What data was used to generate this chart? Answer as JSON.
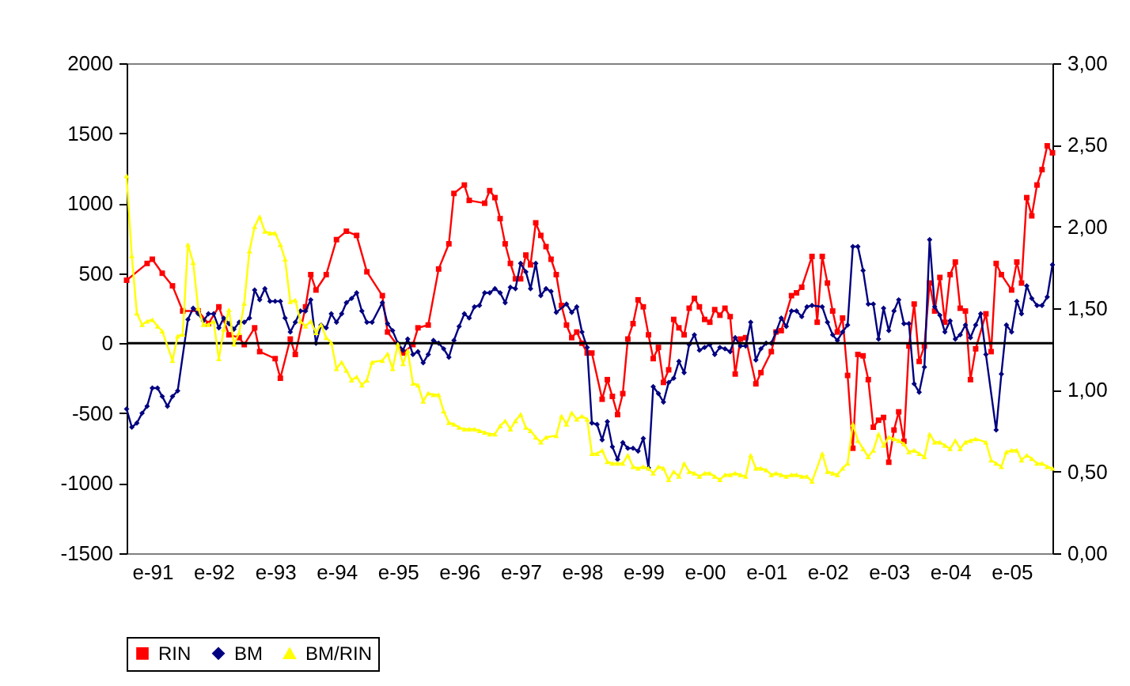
{
  "chart_data": {
    "type": "line",
    "legend": "bottom",
    "line_style": "solid",
    "xlim": [
      "1990-08",
      "2005-09"
    ],
    "xticks": [
      {
        "value": "1991-01",
        "label": "e-91"
      },
      {
        "value": "1992-01",
        "label": "e-92"
      },
      {
        "value": "1993-01",
        "label": "e-93"
      },
      {
        "value": "1994-01",
        "label": "e-94"
      },
      {
        "value": "1995-01",
        "label": "e-95"
      },
      {
        "value": "1996-01",
        "label": "e-96"
      },
      {
        "value": "1997-01",
        "label": "e-97"
      },
      {
        "value": "1998-01",
        "label": "e-98"
      },
      {
        "value": "1999-01",
        "label": "e-99"
      },
      {
        "value": "2000-01",
        "label": "e-00"
      },
      {
        "value": "2001-01",
        "label": "e-01"
      },
      {
        "value": "2002-01",
        "label": "e-02"
      },
      {
        "value": "2003-01",
        "label": "e-03"
      },
      {
        "value": "2004-01",
        "label": "e-04"
      },
      {
        "value": "2005-01",
        "label": "e-05"
      }
    ],
    "ylim": [
      -1500,
      2000
    ],
    "yticks": [
      -1500,
      -1000,
      -500,
      0,
      500,
      1000,
      1500,
      2000
    ],
    "ref_lines": [
      {
        "axis": "y",
        "value": 0,
        "color": "#000000",
        "line_style": "solid"
      }
    ],
    "y2lim": [
      0,
      3
    ],
    "y2ticks": [
      {
        "value": 0,
        "label": "0,00"
      },
      {
        "value": 0.5,
        "label": "0,50"
      },
      {
        "value": 1,
        "label": "1,00"
      },
      {
        "value": 1.5,
        "label": "1,50"
      },
      {
        "value": 2,
        "label": "2,00"
      },
      {
        "value": 2.5,
        "label": "2,50"
      },
      {
        "value": 3,
        "label": "3,00"
      }
    ],
    "series": [
      {
        "name": "RIN",
        "color": "#ff0000",
        "marker": "square",
        "x": [
          "1990-08",
          "1990-12",
          "1991-01",
          "1991-03",
          "1991-05",
          "1991-07",
          "1991-10",
          "1991-12",
          "1992-02",
          "1992-04",
          "1992-06",
          "1992-07",
          "1992-09",
          "1992-10",
          "1993-01",
          "1993-02",
          "1993-04",
          "1993-05",
          "1993-07",
          "1993-08",
          "1993-09",
          "1993-11",
          "1994-01",
          "1994-03",
          "1994-05",
          "1994-07",
          "1994-10",
          "1994-11",
          "1995-02",
          "1995-04",
          "1995-05",
          "1995-07",
          "1995-09",
          "1995-11",
          "1995-12",
          "1996-02",
          "1996-03",
          "1996-06",
          "1996-07",
          "1996-08",
          "1996-09",
          "1996-10",
          "1996-11",
          "1996-12",
          "1997-01",
          "1997-02",
          "1997-03",
          "1997-04",
          "1997-05",
          "1997-06",
          "1997-07",
          "1997-08",
          "1997-09",
          "1997-10",
          "1997-11",
          "1997-12",
          "1998-01",
          "1998-02",
          "1998-03",
          "1998-05",
          "1998-06",
          "1998-07",
          "1998-08",
          "1998-09",
          "1998-10",
          "1998-11",
          "1998-12",
          "1999-01",
          "1999-02",
          "1999-03",
          "1999-04",
          "1999-05",
          "1999-06",
          "1999-07",
          "1999-08",
          "1999-09",
          "1999-10",
          "1999-11",
          "1999-12",
          "2000-01",
          "2000-02",
          "2000-03",
          "2000-04",
          "2000-05",
          "2000-06",
          "2000-07",
          "2000-08",
          "2000-09",
          "2000-11",
          "2000-12",
          "2001-02",
          "2001-03",
          "2001-04",
          "2001-06",
          "2001-07",
          "2001-08",
          "2001-10",
          "2001-11",
          "2001-12",
          "2002-01",
          "2002-02",
          "2002-03",
          "2002-04",
          "2002-05",
          "2002-06",
          "2002-07",
          "2002-08",
          "2002-09",
          "2002-10",
          "2002-11",
          "2002-12",
          "2003-01",
          "2003-02",
          "2003-03",
          "2003-04",
          "2003-05",
          "2003-06",
          "2003-07",
          "2003-08",
          "2003-09",
          "2003-10",
          "2003-11",
          "2003-12",
          "2004-01",
          "2004-02",
          "2004-03",
          "2004-04",
          "2004-05",
          "2004-06",
          "2004-08",
          "2004-09",
          "2004-10",
          "2004-11",
          "2005-01",
          "2005-02",
          "2005-03",
          "2005-04",
          "2005-05",
          "2005-06",
          "2005-07",
          "2005-08",
          "2005-09"
        ],
        "values": [
          450,
          570,
          600,
          500,
          410,
          230,
          230,
          140,
          260,
          60,
          40,
          -10,
          110,
          -60,
          -110,
          -250,
          30,
          -80,
          260,
          490,
          380,
          490,
          740,
          800,
          770,
          510,
          340,
          80,
          -70,
          -10,
          110,
          130,
          530,
          710,
          1070,
          1130,
          1020,
          1000,
          1090,
          1040,
          890,
          710,
          570,
          460,
          460,
          630,
          560,
          860,
          770,
          690,
          600,
          490,
          270,
          130,
          40,
          80,
          0,
          -70,
          -70,
          -400,
          -260,
          -380,
          -510,
          -360,
          30,
          140,
          310,
          260,
          60,
          -110,
          -30,
          -280,
          -190,
          170,
          110,
          60,
          250,
          320,
          260,
          170,
          150,
          240,
          200,
          250,
          190,
          -220,
          30,
          40,
          -290,
          -210,
          -60,
          80,
          90,
          340,
          360,
          400,
          620,
          150,
          620,
          430,
          230,
          80,
          180,
          -230,
          -750,
          -80,
          -90,
          -260,
          -600,
          -550,
          -530,
          -850,
          -620,
          -490,
          -700,
          -20,
          280,
          -130,
          -20,
          430,
          230,
          470,
          150,
          490,
          580,
          250,
          230,
          -260,
          -40,
          210,
          -60,
          570,
          490,
          380,
          580,
          430,
          1040,
          910,
          1130,
          1240,
          1410,
          1360
        ]
      },
      {
        "name": "BM",
        "color": "#000080",
        "marker": "diamond",
        "x": [
          "1990-08",
          "1990-09",
          "1990-10",
          "1990-11",
          "1990-12",
          "1991-01",
          "1991-02",
          "1991-03",
          "1991-04",
          "1991-05",
          "1991-06",
          "1991-08",
          "1991-09",
          "1991-10",
          "1991-11",
          "1991-12",
          "1992-01",
          "1992-02",
          "1992-03",
          "1992-04",
          "1992-05",
          "1992-06",
          "1992-07",
          "1992-08",
          "1992-09",
          "1992-10",
          "1992-11",
          "1992-12",
          "1993-01",
          "1993-02",
          "1993-03",
          "1993-04",
          "1993-05",
          "1993-06",
          "1993-07",
          "1993-08",
          "1993-09",
          "1993-10",
          "1993-11",
          "1993-12",
          "1994-01",
          "1994-02",
          "1994-03",
          "1994-04",
          "1994-05",
          "1994-06",
          "1994-07",
          "1994-08",
          "1994-10",
          "1994-11",
          "1994-12",
          "1995-01",
          "1995-02",
          "1995-03",
          "1995-04",
          "1995-05",
          "1995-06",
          "1995-07",
          "1995-08",
          "1995-09",
          "1995-10",
          "1995-11",
          "1995-12",
          "1996-01",
          "1996-02",
          "1996-03",
          "1996-04",
          "1996-05",
          "1996-06",
          "1996-07",
          "1996-08",
          "1996-09",
          "1996-10",
          "1996-11",
          "1996-12",
          "1997-01",
          "1997-02",
          "1997-03",
          "1997-04",
          "1997-05",
          "1997-06",
          "1997-07",
          "1997-08",
          "1997-10",
          "1997-11",
          "1997-12",
          "1998-01",
          "1998-02",
          "1998-03",
          "1998-04",
          "1998-05",
          "1998-06",
          "1998-07",
          "1998-08",
          "1998-09",
          "1998-10",
          "1998-11",
          "1998-12",
          "1999-01",
          "1999-02",
          "1999-03",
          "1999-04",
          "1999-05",
          "1999-06",
          "1999-07",
          "1999-08",
          "1999-09",
          "1999-10",
          "1999-11",
          "1999-12",
          "2000-01",
          "2000-02",
          "2000-03",
          "2000-04",
          "2000-05",
          "2000-06",
          "2000-07",
          "2000-08",
          "2000-09",
          "2000-10",
          "2000-11",
          "2000-12",
          "2001-01",
          "2001-02",
          "2001-03",
          "2001-04",
          "2001-05",
          "2001-06",
          "2001-07",
          "2001-08",
          "2001-09",
          "2001-10",
          "2001-12",
          "2002-01",
          "2002-02",
          "2002-03",
          "2002-04",
          "2002-05",
          "2002-06",
          "2002-07",
          "2002-08",
          "2002-09",
          "2002-10",
          "2002-11",
          "2002-12",
          "2003-01",
          "2003-02",
          "2003-03",
          "2003-04",
          "2003-05",
          "2003-06",
          "2003-07",
          "2003-08",
          "2003-09",
          "2003-10",
          "2003-11",
          "2003-12",
          "2004-01",
          "2004-02",
          "2004-03",
          "2004-04",
          "2004-05",
          "2004-06",
          "2004-07",
          "2004-08",
          "2004-10",
          "2004-11",
          "2004-12",
          "2005-01",
          "2005-02",
          "2005-03",
          "2005-04",
          "2005-05",
          "2005-06",
          "2005-07",
          "2005-08",
          "2005-09"
        ],
        "values": [
          -470,
          -600,
          -570,
          -500,
          -450,
          -320,
          -320,
          -380,
          -450,
          -380,
          -340,
          170,
          250,
          210,
          160,
          210,
          210,
          110,
          180,
          140,
          100,
          150,
          150,
          180,
          380,
          310,
          390,
          300,
          300,
          300,
          180,
          80,
          150,
          230,
          230,
          310,
          0,
          130,
          110,
          210,
          150,
          210,
          290,
          320,
          360,
          230,
          150,
          150,
          290,
          140,
          90,
          0,
          -50,
          30,
          -80,
          -60,
          -140,
          -80,
          20,
          0,
          -40,
          -100,
          20,
          120,
          210,
          180,
          260,
          270,
          360,
          360,
          390,
          360,
          290,
          400,
          390,
          570,
          510,
          390,
          570,
          340,
          390,
          370,
          220,
          280,
          220,
          260,
          80,
          -30,
          -570,
          -580,
          -690,
          -560,
          -740,
          -830,
          -710,
          -750,
          -750,
          -770,
          -680,
          -890,
          -310,
          -360,
          -420,
          -280,
          -250,
          -130,
          -210,
          -10,
          60,
          -50,
          -30,
          -10,
          -80,
          -30,
          -40,
          -60,
          40,
          -20,
          -20,
          150,
          -120,
          -40,
          0,
          0,
          80,
          180,
          120,
          230,
          230,
          190,
          260,
          270,
          260,
          150,
          60,
          20,
          80,
          130,
          690,
          690,
          520,
          280,
          280,
          30,
          250,
          90,
          230,
          310,
          140,
          140,
          -290,
          -350,
          -170,
          740,
          260,
          200,
          80,
          160,
          30,
          60,
          130,
          40,
          130,
          210,
          -80,
          -620,
          -220,
          130,
          80,
          300,
          210,
          410,
          320,
          270,
          270,
          330,
          560
        ]
      },
      {
        "name": "BM/RIN",
        "color": "#ffff00",
        "marker": "triangle",
        "axis": "y2",
        "x": [
          "1990-08",
          "1990-09",
          "1990-10",
          "1990-11",
          "1990-12",
          "1991-01",
          "1991-02",
          "1991-03",
          "1991-05",
          "1991-06",
          "1991-07",
          "1991-08",
          "1991-09",
          "1991-10",
          "1991-11",
          "1991-12",
          "1992-01",
          "1992-02",
          "1992-03",
          "1992-04",
          "1992-05",
          "1992-06",
          "1992-07",
          "1992-08",
          "1992-09",
          "1992-10",
          "1992-11",
          "1992-12",
          "1993-01",
          "1993-02",
          "1993-03",
          "1993-04",
          "1993-05",
          "1993-06",
          "1993-07",
          "1993-08",
          "1993-09",
          "1993-10",
          "1993-11",
          "1993-12",
          "1994-01",
          "1994-02",
          "1994-03",
          "1994-04",
          "1994-05",
          "1994-06",
          "1994-07",
          "1994-08",
          "1994-10",
          "1994-11",
          "1994-12",
          "1995-01",
          "1995-02",
          "1995-03",
          "1995-04",
          "1995-05",
          "1995-06",
          "1995-07",
          "1995-08",
          "1995-09",
          "1995-10",
          "1995-11",
          "1995-12",
          "1996-01",
          "1996-02",
          "1996-03",
          "1996-04",
          "1996-05",
          "1996-06",
          "1996-07",
          "1996-08",
          "1996-09",
          "1996-10",
          "1996-11",
          "1996-12",
          "1997-01",
          "1997-02",
          "1997-03",
          "1997-04",
          "1997-05",
          "1997-06",
          "1997-08",
          "1997-09",
          "1997-10",
          "1997-11",
          "1997-12",
          "1998-01",
          "1998-02",
          "1998-03",
          "1998-04",
          "1998-05",
          "1998-06",
          "1998-07",
          "1998-08",
          "1998-09",
          "1998-10",
          "1998-11",
          "1998-12",
          "1999-01",
          "1999-02",
          "1999-03",
          "1999-04",
          "1999-05",
          "1999-06",
          "1999-07",
          "1999-08",
          "1999-09",
          "1999-10",
          "1999-11",
          "1999-12",
          "2000-01",
          "2000-02",
          "2000-03",
          "2000-04",
          "2000-05",
          "2000-06",
          "2000-07",
          "2000-08",
          "2000-09",
          "2000-10",
          "2000-11",
          "2000-12",
          "2001-01",
          "2001-02",
          "2001-03",
          "2001-04",
          "2001-05",
          "2001-06",
          "2001-07",
          "2001-08",
          "2001-09",
          "2001-10",
          "2001-12",
          "2002-01",
          "2002-02",
          "2002-03",
          "2002-04",
          "2002-05",
          "2002-06",
          "2002-07",
          "2002-08",
          "2002-09",
          "2002-10",
          "2002-11",
          "2002-12",
          "2003-01",
          "2003-02",
          "2003-03",
          "2003-04",
          "2003-05",
          "2003-06",
          "2003-07",
          "2003-08",
          "2003-09",
          "2003-10",
          "2003-11",
          "2003-12",
          "2004-01",
          "2004-02",
          "2004-03",
          "2004-04",
          "2004-05",
          "2004-06",
          "2004-08",
          "2004-09",
          "2004-10",
          "2004-11",
          "2004-12",
          "2005-01",
          "2005-02",
          "2005-03",
          "2005-04",
          "2005-05",
          "2005-06",
          "2005-07",
          "2005-08",
          "2005-09"
        ],
        "values": [
          2.31,
          1.82,
          1.47,
          1.4,
          1.42,
          1.43,
          1.39,
          1.36,
          1.18,
          1.33,
          1.34,
          1.89,
          1.78,
          1.5,
          1.4,
          1.4,
          1.42,
          1.19,
          1.37,
          1.49,
          1.28,
          1.35,
          1.53,
          1.85,
          2.0,
          2.06,
          1.97,
          1.96,
          1.96,
          1.89,
          1.8,
          1.54,
          1.55,
          1.42,
          1.39,
          1.42,
          1.35,
          1.4,
          1.32,
          1.29,
          1.13,
          1.17,
          1.12,
          1.06,
          1.08,
          1.03,
          1.06,
          1.17,
          1.18,
          1.22,
          1.13,
          1.28,
          1.16,
          1.24,
          1.04,
          1.03,
          0.93,
          0.98,
          0.97,
          0.97,
          0.87,
          0.8,
          0.79,
          0.77,
          0.76,
          0.76,
          0.76,
          0.75,
          0.74,
          0.73,
          0.73,
          0.78,
          0.81,
          0.76,
          0.81,
          0.85,
          0.77,
          0.75,
          0.71,
          0.68,
          0.71,
          0.72,
          0.84,
          0.79,
          0.86,
          0.82,
          0.84,
          0.82,
          0.61,
          0.61,
          0.63,
          0.56,
          0.55,
          0.55,
          0.55,
          0.6,
          0.53,
          0.52,
          0.53,
          0.52,
          0.49,
          0.53,
          0.52,
          0.45,
          0.5,
          0.47,
          0.55,
          0.5,
          0.49,
          0.47,
          0.49,
          0.49,
          0.47,
          0.45,
          0.48,
          0.48,
          0.49,
          0.48,
          0.47,
          0.6,
          0.52,
          0.52,
          0.51,
          0.48,
          0.49,
          0.48,
          0.47,
          0.48,
          0.48,
          0.47,
          0.47,
          0.44,
          0.61,
          0.5,
          0.49,
          0.48,
          0.52,
          0.55,
          0.79,
          0.69,
          0.64,
          0.59,
          0.63,
          0.73,
          0.66,
          0.71,
          0.7,
          0.69,
          0.67,
          0.62,
          0.63,
          0.61,
          0.59,
          0.73,
          0.68,
          0.68,
          0.66,
          0.64,
          0.69,
          0.64,
          0.68,
          0.69,
          0.7,
          0.68,
          0.57,
          0.55,
          0.53,
          0.62,
          0.63,
          0.63,
          0.57,
          0.6,
          0.58,
          0.55,
          0.55,
          0.53,
          0.52
        ]
      }
    ]
  }
}
